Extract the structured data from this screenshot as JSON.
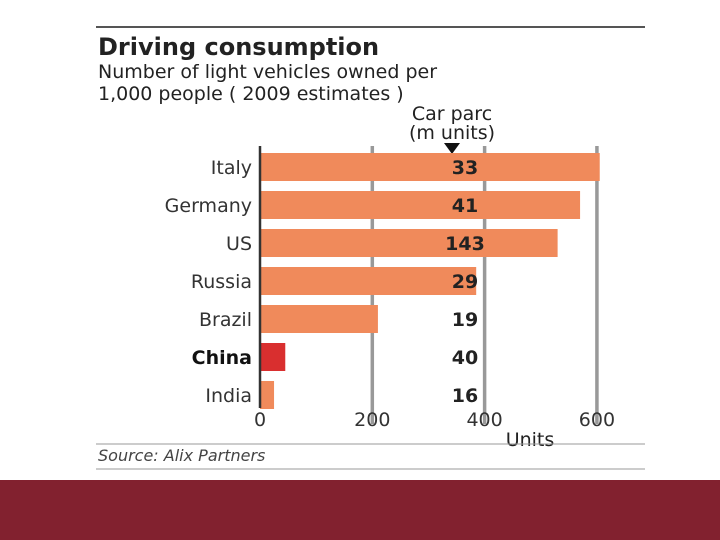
{
  "chart_data": {
    "type": "bar",
    "orientation": "horizontal",
    "title": "Driving consumption",
    "subtitle_lines": [
      "Number of light vehicles owned per",
      "1,000 people ( 2009 estimates )"
    ],
    "annotation_header_lines": [
      "Car parc",
      "(m units)"
    ],
    "categories": [
      "Italy",
      "Germany",
      "US",
      "Russia",
      "Brazil",
      "China",
      "India"
    ],
    "values": [
      605,
      570,
      530,
      385,
      210,
      45,
      25
    ],
    "car_parc_labels": [
      "33",
      "41",
      "143",
      "29",
      "19",
      "40",
      "16"
    ],
    "highlight_category": "China",
    "xlim": [
      0,
      650
    ],
    "x_ticks": [
      0,
      200,
      400,
      600
    ],
    "xlabel": "Units",
    "source": "Source: Alix Partners",
    "colors": {
      "bar": "#f08a5b",
      "highlight": "#d92f2f",
      "gridline": "#999999",
      "axis": "#333333",
      "rule": "#555555"
    }
  }
}
